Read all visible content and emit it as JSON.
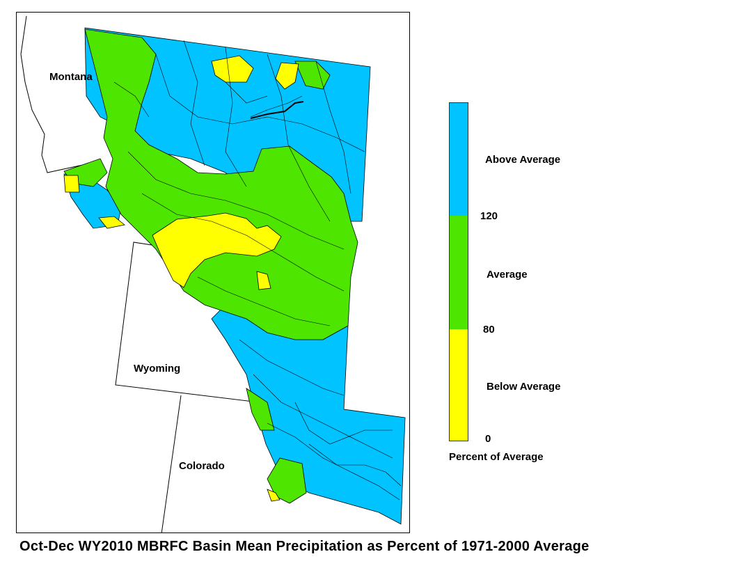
{
  "map": {
    "state_labels": {
      "montana": "Montana",
      "wyoming": "Wyoming",
      "colorado": "Colorado"
    }
  },
  "legend": {
    "categories": [
      {
        "label": "Above Average",
        "color": "#00c3ff",
        "range": [
          120,
          null
        ]
      },
      {
        "label": "Average",
        "color": "#4ee600",
        "range": [
          80,
          120
        ]
      },
      {
        "label": "Below Average",
        "color": "#ffff00",
        "range": [
          0,
          80
        ]
      }
    ],
    "ticks": [
      "120",
      "80",
      "0"
    ],
    "title": "Percent of Average"
  },
  "caption": "Oct-Dec WY2010 MBRFC Basin Mean Precipitation as Percent of 1971-2000 Average"
}
